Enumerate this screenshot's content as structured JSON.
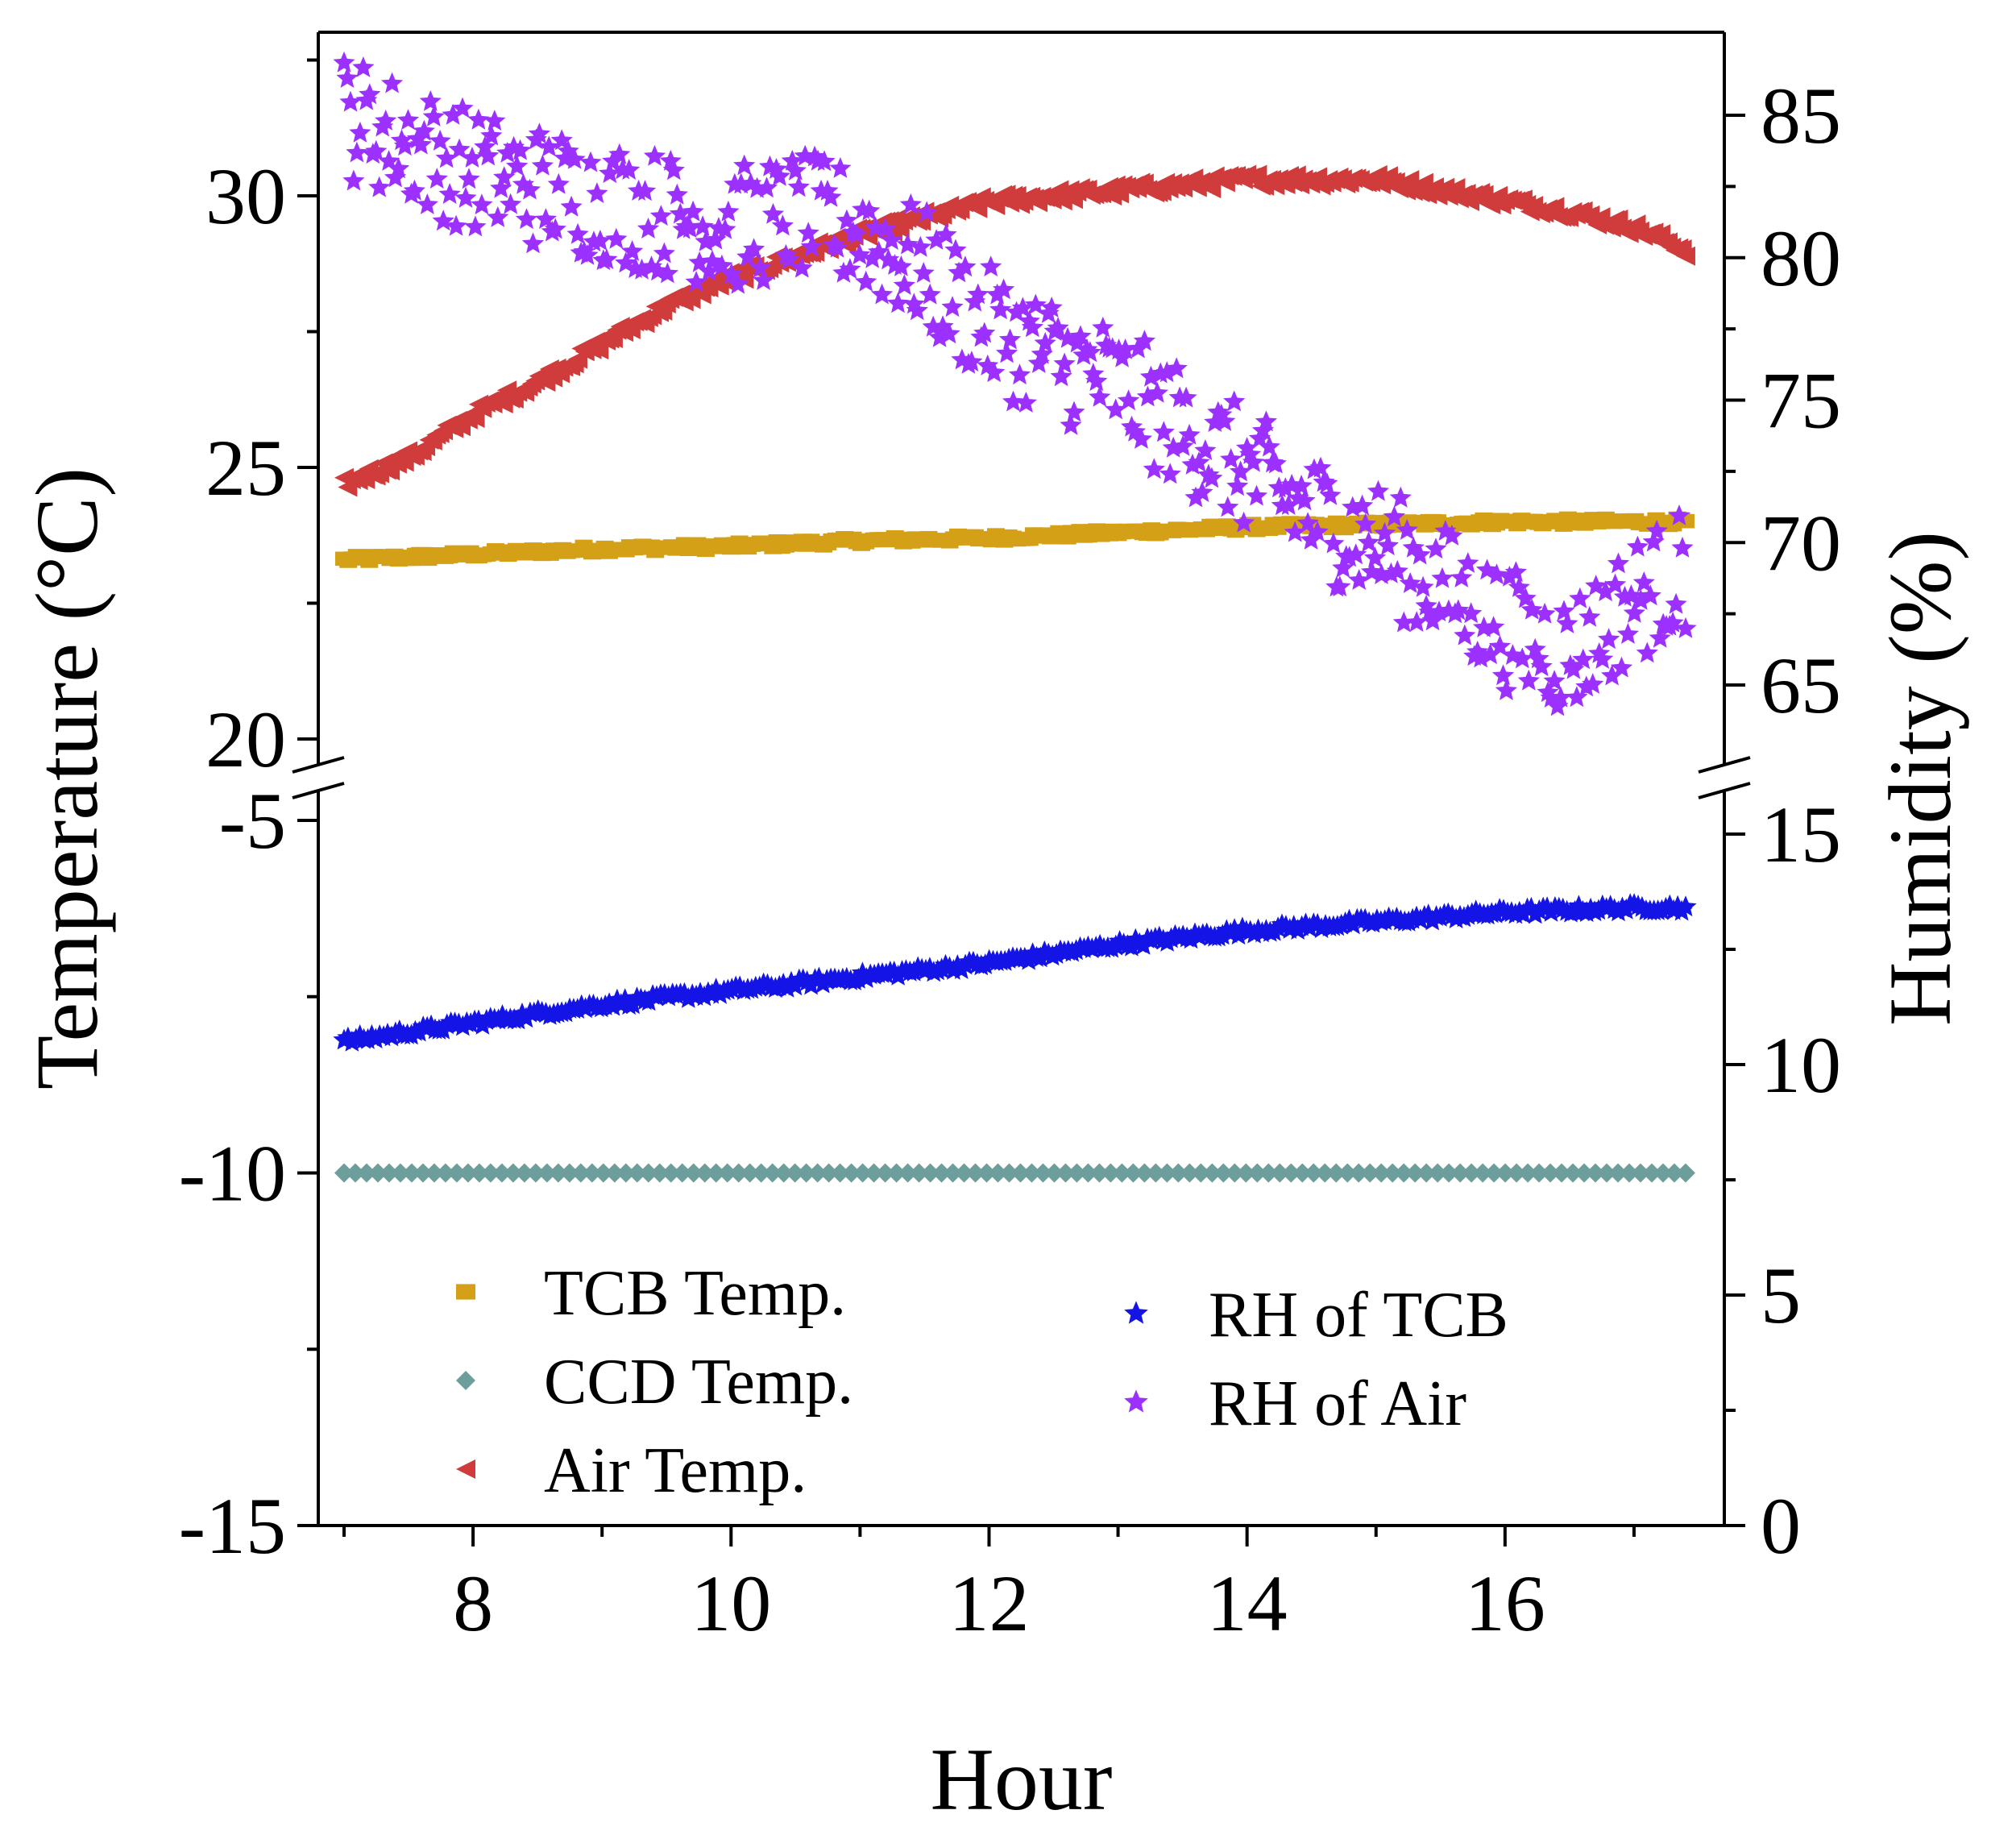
{
  "chart_data": {
    "type": "scatter",
    "xlabel": "Hour",
    "ylabel_left": "Temperature (°C)",
    "ylabel_right": "Humidity (%)",
    "x_ticks": [
      "8",
      "10",
      "12",
      "14",
      "16"
    ],
    "x_range": [
      6.8,
      17.7
    ],
    "left_axis": {
      "upper_segment": {
        "range": [
          20,
          33
        ],
        "ticks": [
          "20",
          "25",
          "30"
        ]
      },
      "lower_segment": {
        "range": [
          -15,
          -5
        ],
        "ticks": [
          "-5",
          "-10",
          "-15"
        ]
      },
      "axis_break": true
    },
    "right_axis": {
      "upper_segment": {
        "range": [
          62,
          87
        ],
        "ticks": [
          "65",
          "70",
          "75",
          "80",
          "85"
        ]
      },
      "lower_segment": {
        "range": [
          0,
          15
        ],
        "ticks": [
          "0",
          "5",
          "10",
          "15"
        ]
      },
      "axis_break": true
    },
    "legend": [
      {
        "label": "TCB Temp.",
        "marker": "square",
        "color": "#d4a017"
      },
      {
        "label": "CCD Temp.",
        "marker": "diamond",
        "color": "#6d9e9c"
      },
      {
        "label": "Air Temp.",
        "marker": "left-triangle",
        "color": "#d03b3b"
      },
      {
        "label": "RH of TCB",
        "marker": "star",
        "color": "#1414e6"
      },
      {
        "label": "RH of Air",
        "marker": "star",
        "color": "#9b30ff"
      }
    ],
    "series": [
      {
        "name": "TCB Temp.",
        "axis": "left",
        "color": "#d4a017",
        "marker": "square",
        "x": [
          7.0,
          8.0,
          9.0,
          10.0,
          11.0,
          12.0,
          13.0,
          14.0,
          15.0,
          16.0,
          17.0,
          17.4
        ],
        "y": [
          23.3,
          23.4,
          23.5,
          23.55,
          23.65,
          23.7,
          23.8,
          23.9,
          23.95,
          24.0,
          24.0,
          24.0
        ]
      },
      {
        "name": "CCD Temp.",
        "axis": "left",
        "color": "#6d9e9c",
        "marker": "diamond",
        "x": [
          7.0,
          17.4
        ],
        "y": [
          -10.0,
          -10.0
        ]
      },
      {
        "name": "Air Temp.",
        "axis": "left",
        "color": "#d03b3b",
        "marker": "left-triangle",
        "x": [
          7.0,
          7.5,
          8.0,
          8.5,
          9.0,
          9.5,
          10.0,
          10.5,
          11.0,
          11.5,
          12.0,
          12.5,
          13.0,
          13.5,
          14.0,
          14.5,
          15.0,
          15.5,
          16.0,
          16.5,
          17.0,
          17.4
        ],
        "y": [
          24.7,
          25.2,
          26.0,
          26.6,
          27.3,
          28.0,
          28.5,
          28.9,
          29.3,
          29.6,
          29.9,
          30.0,
          30.1,
          30.2,
          30.3,
          30.3,
          30.3,
          30.1,
          29.9,
          29.7,
          29.4,
          29.0
        ]
      },
      {
        "name": "RH of TCB",
        "axis": "right",
        "color": "#1414e6",
        "marker": "star",
        "x": [
          7.0,
          8.0,
          9.0,
          10.0,
          11.0,
          12.0,
          13.0,
          14.0,
          15.0,
          16.0,
          17.0,
          17.4
        ],
        "y": [
          10.5,
          10.9,
          11.3,
          11.6,
          11.9,
          12.2,
          12.6,
          12.9,
          13.1,
          13.3,
          13.4,
          13.4
        ]
      },
      {
        "name": "RH of Air",
        "axis": "right",
        "color": "#9b30ff",
        "marker": "star",
        "x": [
          7.0,
          7.5,
          8.0,
          8.5,
          9.0,
          9.5,
          10.0,
          10.5,
          11.0,
          11.5,
          12.0,
          12.5,
          13.0,
          13.5,
          14.0,
          14.5,
          15.0,
          15.5,
          16.0,
          16.5,
          17.0,
          17.4
        ],
        "y": [
          85.0,
          84.0,
          83.0,
          82.5,
          82.0,
          81.5,
          81.0,
          81.5,
          81.0,
          79.5,
          77.5,
          76.5,
          75.5,
          74.0,
          72.5,
          71.0,
          70.0,
          68.5,
          67.0,
          66.0,
          68.0,
          69.0
        ]
      }
    ]
  }
}
